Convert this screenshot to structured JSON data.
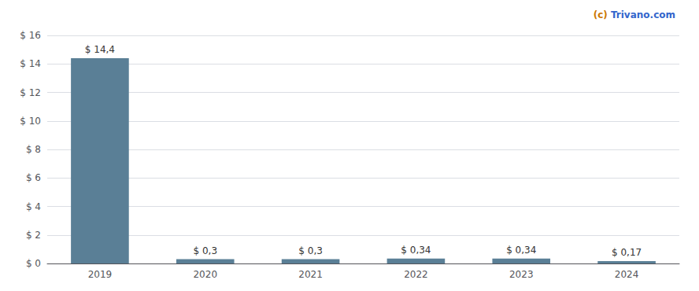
{
  "chart_data": {
    "type": "bar",
    "categories": [
      "2019",
      "2020",
      "2021",
      "2022",
      "2023",
      "2024"
    ],
    "values": [
      14.4,
      0.3,
      0.3,
      0.34,
      0.34,
      0.17
    ],
    "value_labels": [
      "$ 14,4",
      "$ 0,3",
      "$ 0,3",
      "$ 0,34",
      "$ 0,34",
      "$ 0,17"
    ],
    "data_labels": true,
    "color": "#5a7f96",
    "ylim": [
      0,
      16
    ],
    "yticks": [
      {
        "value": 0,
        "label": "$ 0"
      },
      {
        "value": 2,
        "label": "$ 2"
      },
      {
        "value": 4,
        "label": "$ 4"
      },
      {
        "value": 6,
        "label": "$ 6"
      },
      {
        "value": 8,
        "label": "$ 8"
      },
      {
        "value": 10,
        "label": "$ 10"
      },
      {
        "value": 12,
        "label": "$ 12"
      },
      {
        "value": 14,
        "label": "$ 14"
      },
      {
        "value": 16,
        "label": "$ 16"
      }
    ],
    "grid": true,
    "annotations": [
      {
        "text": "(c) ",
        "color": "#cc7700"
      },
      {
        "text": "Trivano.com",
        "color": "#3366cc"
      }
    ]
  }
}
